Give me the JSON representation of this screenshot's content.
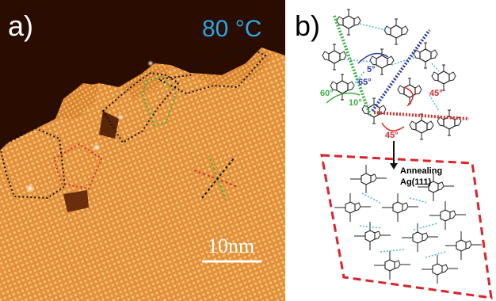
{
  "panel_a": {
    "label": "a)",
    "temperature": "80 °C",
    "scale_bar": "10nm"
  },
  "panel_b": {
    "label": "b)",
    "angles": {
      "a5": "5°",
      "a65": "65°",
      "a60": "60°",
      "a10": "10°",
      "a45_top": "45°",
      "a45_bottom": "45°"
    },
    "annotation_line1": "Annealing",
    "annotation_line2": "Ag(111)"
  },
  "colors": {
    "stm_surface": "#e6923c",
    "stm_dark": "#2b0c00",
    "temp_text": "#2aa7e6",
    "green": "#3cb043",
    "blue": "#2e3fa0",
    "red": "#d62d2d",
    "cyan": "#4fb3e0",
    "dash_box": "#d8242a"
  }
}
